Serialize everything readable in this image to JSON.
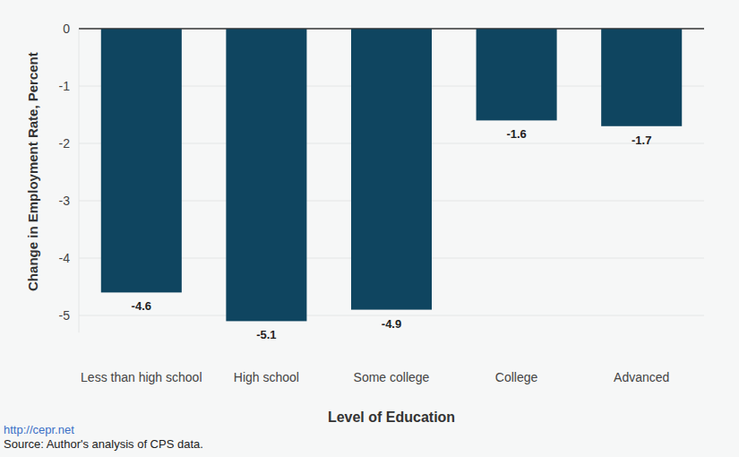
{
  "chart_data": {
    "type": "bar",
    "x_label": "Level of Education",
    "y_label": "Change in Employment Rate, Percent",
    "categories": [
      "Less than high school",
      "High school",
      "Some college",
      "College",
      "Advanced"
    ],
    "values": [
      -4.6,
      -5.1,
      -4.9,
      -1.6,
      -1.7
    ],
    "color": "#0f4560",
    "ylim": [
      -5.3,
      0
    ],
    "yticks": [
      0,
      -1,
      -2,
      -3,
      -4,
      -5
    ],
    "grid": true,
    "data_labels": true,
    "annotations": [
      "http://cepr.net",
      "Source: Author's analysis of CPS data."
    ]
  }
}
